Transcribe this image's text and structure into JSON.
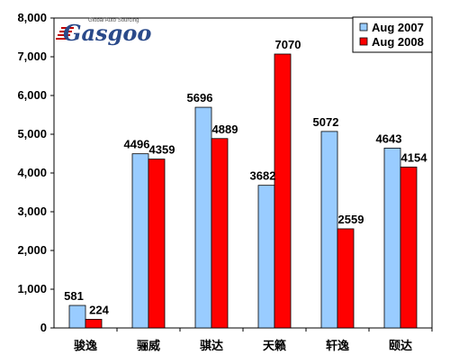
{
  "logo": {
    "name": "Gasgoo",
    "tagline": "Global Auto Sourcing"
  },
  "chart_data": {
    "type": "bar",
    "categories": [
      "骏逸",
      "骊威",
      "骐达",
      "天籁",
      "轩逸",
      "颐达"
    ],
    "series": [
      {
        "name": "Aug 2007",
        "values": [
          581,
          4496,
          5696,
          3682,
          5072,
          4643
        ],
        "color": "#99ccff"
      },
      {
        "name": "Aug 2008",
        "values": [
          224,
          4359,
          4889,
          7070,
          2559,
          4154
        ],
        "color": "#ff0000"
      }
    ],
    "y_ticks": [
      "0",
      "1,000",
      "2,000",
      "3,000",
      "4,000",
      "5,000",
      "6,000",
      "7,000",
      "8,000"
    ],
    "ylim": [
      0,
      8000
    ],
    "title": "",
    "xlabel": "",
    "ylabel": "",
    "grid": false,
    "legend_position": "top-right",
    "frame": true
  }
}
